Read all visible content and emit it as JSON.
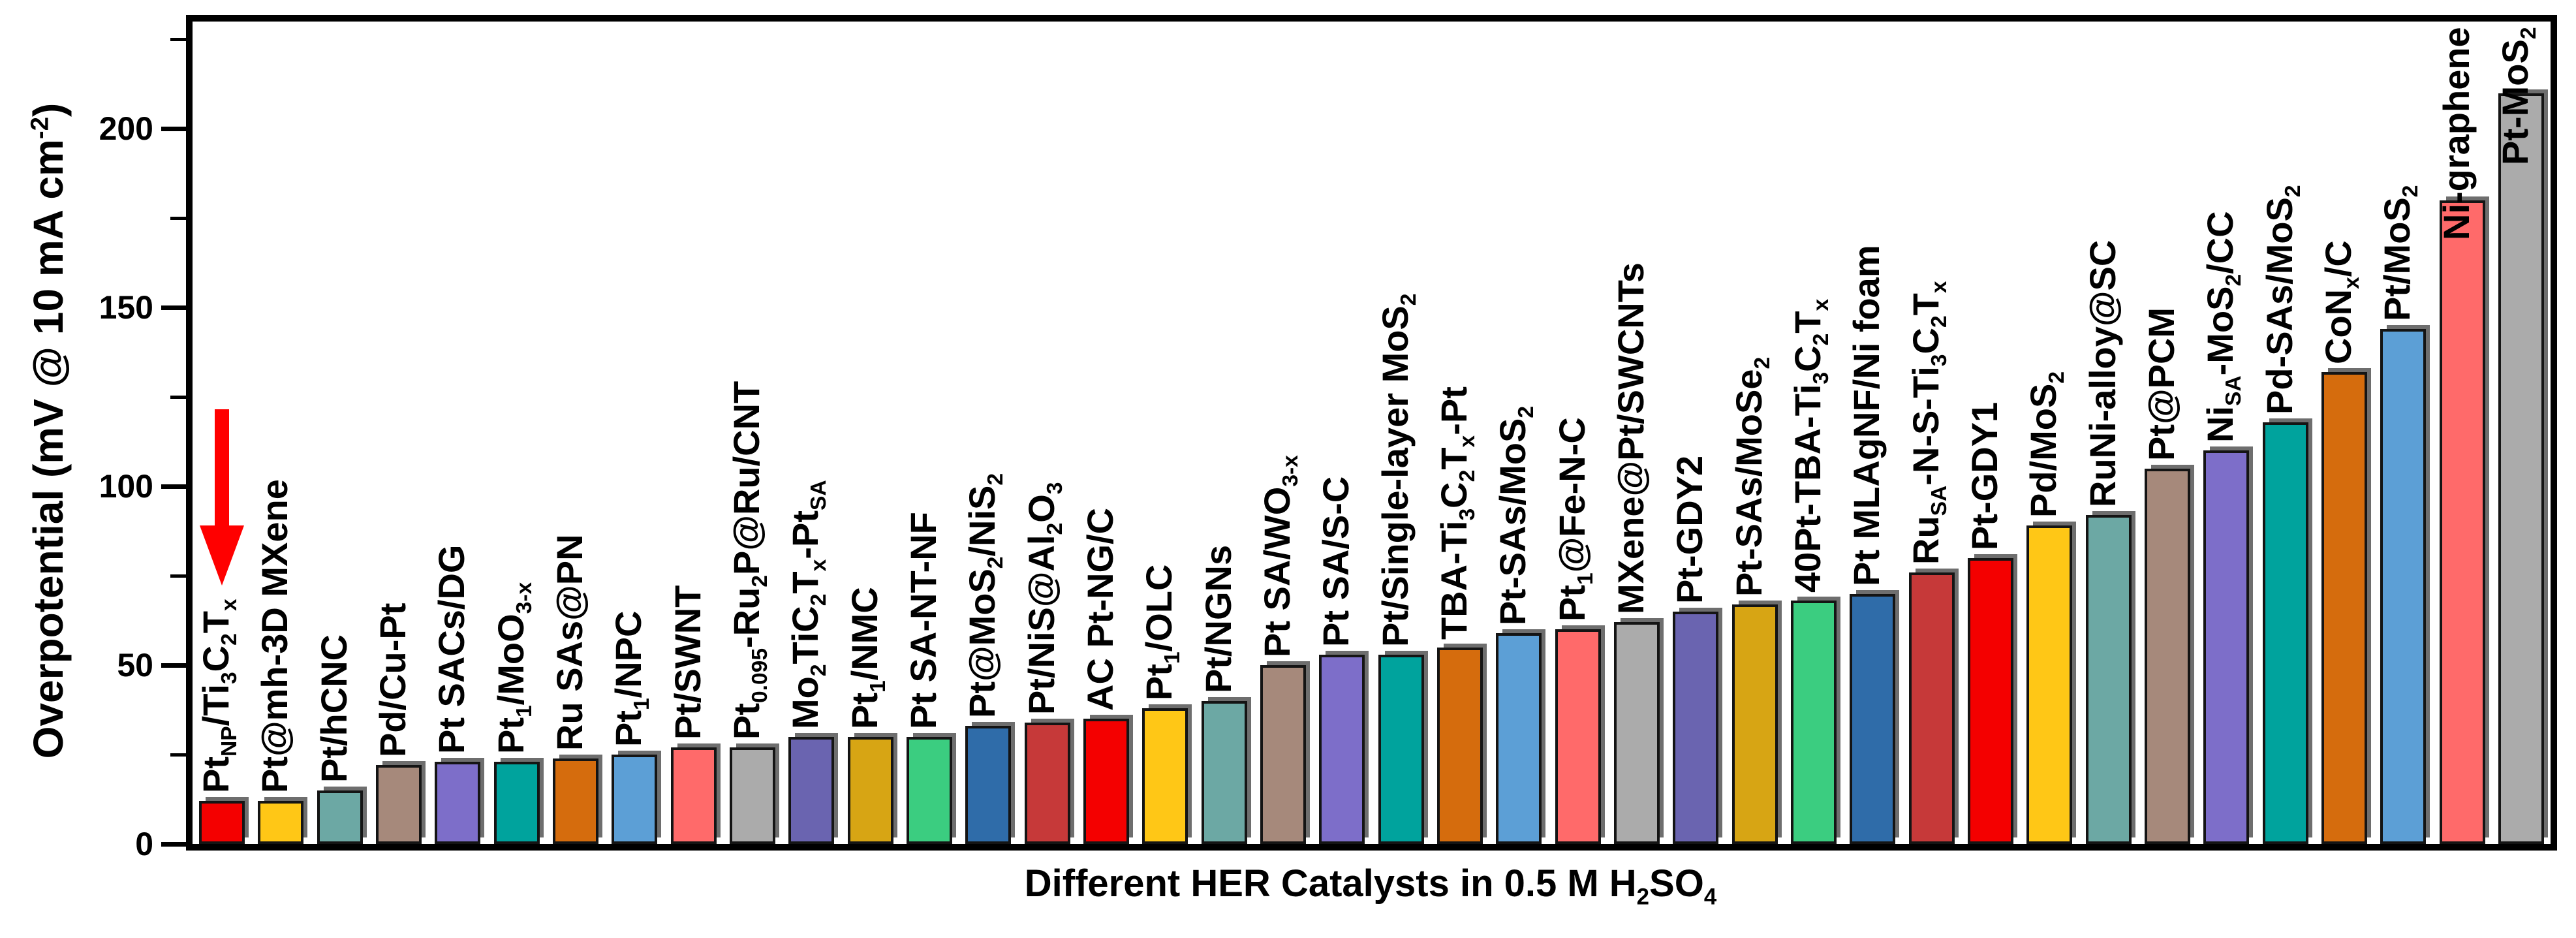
{
  "chart_data": {
    "type": "bar",
    "title": "",
    "xlabel": "Different HER Catalysts in 0.5 M H2SO4",
    "xlabel_html": "Different HER Catalysts in 0.5 M H<sub>2</sub>SO<sub>4</sub>",
    "ylabel": "Overpotential (mV @ 10 mA cm-2)",
    "ylabel_html": "Overpotential (mV @ 10 mA cm<sup>-2</sup>)",
    "ylim": [
      0,
      230
    ],
    "yticks_major": [
      0,
      50,
      100,
      150,
      200
    ],
    "yticks_minor": [
      25,
      75,
      125,
      175,
      225
    ],
    "grid": false,
    "legend": null,
    "background": "#FFFFFF",
    "bar_border_color": "#141414",
    "shadow_color": "#6E6E6E",
    "highlight": {
      "index": 0,
      "icon": "red-down-arrow",
      "arrow_color": "#FF0000"
    },
    "bars": [
      {
        "label": "PtNP/Ti3C2Tx",
        "label_html": "Pt<sub>NP</sub>/Ti<sub>3</sub>C<sub>2</sub>T<sub>x</sub>",
        "value": 12,
        "color": "#F40000"
      },
      {
        "label": "Pt@mh-3D MXene",
        "label_html": "Pt@mh-3D MXene",
        "value": 12,
        "color": "#FFC716"
      },
      {
        "label": "Pt/hCNC",
        "label_html": "Pt/hCNC",
        "value": 15,
        "color": "#6CA8A4"
      },
      {
        "label": "Pd/Cu-Pt",
        "label_html": "Pd/Cu-Pt",
        "value": 22,
        "color": "#A6897B"
      },
      {
        "label": "Pt SACs/DG",
        "label_html": "Pt SACs/DG",
        "value": 23,
        "color": "#7D6EC9"
      },
      {
        "label": "Pt1/MoO3-x",
        "label_html": "Pt<sub>1</sub>/MoO<sub>3-x</sub>",
        "value": 23,
        "color": "#00A39D"
      },
      {
        "label": "Ru SAs@PN",
        "label_html": "Ru SAs@PN",
        "value": 24,
        "color": "#D56C0D"
      },
      {
        "label": "Pt1/NPC",
        "label_html": "Pt<sub>1</sub>/NPC",
        "value": 25,
        "color": "#5C9FD6"
      },
      {
        "label": "Pt/SWNT",
        "label_html": "Pt/SWNT",
        "value": 27,
        "color": "#FF6A6A"
      },
      {
        "label": "Pt0.095-Ru2P@Ru/CNT",
        "label_html": "Pt<sub>0.095</sub>-Ru<sub>2</sub>P@Ru/CNT",
        "value": 27,
        "color": "#ABABAB"
      },
      {
        "label": "Mo2TiC2Tx-PtSA",
        "label_html": "Mo<sub>2</sub>TiC<sub>2</sub>T<sub>x</sub>-Pt<sub>SA</sub>",
        "value": 30,
        "color": "#6A64B0"
      },
      {
        "label": "Pt1/NMC",
        "label_html": "Pt<sub>1</sub>/NMC",
        "value": 30,
        "color": "#D7A514"
      },
      {
        "label": "Pt SA-NT-NF",
        "label_html": "Pt SA-NT-NF",
        "value": 30,
        "color": "#3BCD80"
      },
      {
        "label": "Pt@MoS2/NiS2",
        "label_html": "Pt@MoS<sub>2</sub>/NiS<sub>2</sub>",
        "value": 33,
        "color": "#2F6CA9"
      },
      {
        "label": "Pt/NiS@Al2O3",
        "label_html": "Pt/NiS@Al<sub>2</sub>O<sub>3</sub>",
        "value": 34,
        "color": "#C63939"
      },
      {
        "label": "AC Pt-NG/C",
        "label_html": "AC Pt-NG/C",
        "value": 35,
        "color": "#F40000"
      },
      {
        "label": "Pt1/OLC",
        "label_html": "Pt<sub>1</sub>/OLC",
        "value": 38,
        "color": "#FFC716"
      },
      {
        "label": "Pt/NGNs",
        "label_html": "Pt/NGNs",
        "value": 40,
        "color": "#6CA8A4"
      },
      {
        "label": "Pt SA/WO3-x",
        "label_html": "Pt SA/WO<sub>3-x</sub>",
        "value": 50,
        "color": "#A6897B"
      },
      {
        "label": "Pt SA/S-C",
        "label_html": "Pt SA/S-C",
        "value": 53,
        "color": "#7D6EC9"
      },
      {
        "label": "Pt/Single-layer MoS2",
        "label_html": "Pt/Single-layer MoS<sub>2</sub>",
        "value": 53,
        "color": "#00A39D"
      },
      {
        "label": "TBA-Ti3C2Tx-Pt",
        "label_html": "TBA-Ti<sub>3</sub>C<sub>2</sub>T<sub>x</sub>-Pt",
        "value": 55,
        "color": "#D56C0D"
      },
      {
        "label": "Pt-SAs/MoS2",
        "label_html": "Pt-SAs/MoS<sub>2</sub>",
        "value": 59,
        "color": "#5C9FD6"
      },
      {
        "label": "Pt1@Fe-N-C",
        "label_html": "Pt<sub>1</sub>@Fe-N-C",
        "value": 60,
        "color": "#FF6A6A"
      },
      {
        "label": "MXene@Pt/SWCNTs",
        "label_html": "MXene@Pt/SWCNTs",
        "value": 62,
        "color": "#ABABAB"
      },
      {
        "label": "Pt-GDY2",
        "label_html": "Pt-GDY2",
        "value": 65,
        "color": "#6A64B0"
      },
      {
        "label": "Pt-SAs/MoSe2",
        "label_html": "Pt-SAs/MoSe<sub>2</sub>",
        "value": 67,
        "color": "#D7A514"
      },
      {
        "label": "40Pt-TBA-Ti3C2Tx",
        "label_html": "40Pt-TBA-Ti<sub>3</sub>C<sub>2</sub>T<sub>x</sub>",
        "value": 68,
        "color": "#3BCD80"
      },
      {
        "label": "Pt MLAgNF/Ni foam",
        "label_html": "Pt MLAgNF/Ni foam",
        "value": 70,
        "color": "#2F6CA9"
      },
      {
        "label": "RuSA-N-S-Ti3C2Tx",
        "label_html": "Ru<sub>SA</sub>-N-S-Ti<sub>3</sub>C<sub>2</sub>T<sub>x</sub>",
        "value": 76,
        "color": "#C63939"
      },
      {
        "label": "Pt-GDY1",
        "label_html": "Pt-GDY1",
        "value": 80,
        "color": "#F40000"
      },
      {
        "label": "Pd/MoS2",
        "label_html": "Pd/MoS<sub>2</sub>",
        "value": 89,
        "color": "#FFC716"
      },
      {
        "label": "RuNi-alloy@SC",
        "label_html": "RuNi-alloy@SC",
        "value": 92,
        "color": "#6CA8A4"
      },
      {
        "label": "Pt@PCM",
        "label_html": "Pt@PCM",
        "value": 105,
        "color": "#A6897B"
      },
      {
        "label": "NiSA-MoS2/CC",
        "label_html": "Ni<sub>SA</sub>-MoS<sub>2</sub>/CC",
        "value": 110,
        "color": "#7D6EC9"
      },
      {
        "label": "Pd-SAs/MoS2",
        "label_html": "Pd-SAs/MoS<sub>2</sub>",
        "value": 118,
        "color": "#00A39D"
      },
      {
        "label": "CoNx/C",
        "label_html": "CoN<sub>x</sub>/C",
        "value": 132,
        "color": "#D56C0D"
      },
      {
        "label": "Pt/MoS2",
        "label_html": "Pt/MoS<sub>2</sub>",
        "value": 144,
        "color": "#5C9FD6"
      },
      {
        "label": "Ni-graphene",
        "label_html": "Ni-graphene",
        "value": 180,
        "color": "#FF6A6A"
      },
      {
        "label": "Pt-MoS2",
        "label_html": "Pt-MoS<sub>2</sub>",
        "value": 210,
        "color": "#ABABAB"
      }
    ]
  }
}
